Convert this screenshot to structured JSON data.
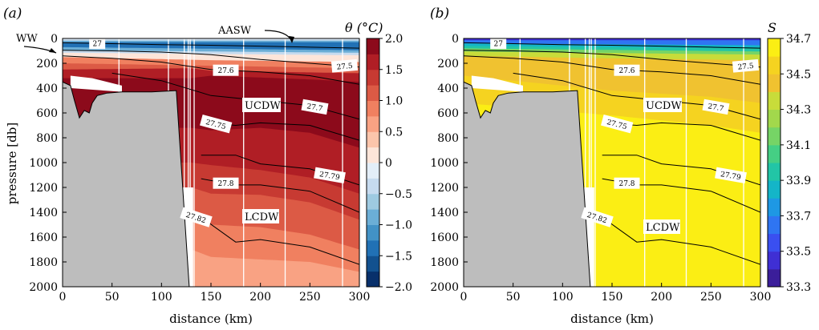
{
  "chart_data": [
    {
      "type": "heatmap",
      "panel_label": "(a)",
      "xlabel": "distance (km)",
      "ylabel": "pressure [db]",
      "xlim": [
        0,
        300
      ],
      "ylim": [
        2000,
        0
      ],
      "xticks": [
        "0",
        "50",
        "100",
        "150",
        "200",
        "250",
        "300"
      ],
      "yticks": [
        "0",
        "200",
        "400",
        "600",
        "800",
        "1000",
        "1200",
        "1400",
        "1600",
        "1800",
        "2000"
      ],
      "colorbar": {
        "title": "θ (°C)",
        "ticks": [
          "2.0",
          "1.5",
          "1.0",
          "0.5",
          "0",
          "−0.5",
          "−1.0",
          "−1.5",
          "−2.0"
        ],
        "range": [
          -2.0,
          2.0
        ],
        "levels": [
          -2.0,
          -1.75,
          -1.5,
          -1.25,
          -1.0,
          -0.75,
          -0.5,
          -0.25,
          0,
          0.25,
          0.5,
          0.75,
          1.0,
          1.25,
          1.5,
          1.75,
          2.0
        ],
        "colors": [
          "#08306b",
          "#12518f",
          "#2171b5",
          "#4292c6",
          "#6baed6",
          "#9ecae1",
          "#c6dbef",
          "#e3eef8",
          "#fde5d9",
          "#fcc5ab",
          "#f9a283",
          "#f08060",
          "#dc5a45",
          "#c73a32",
          "#b01e25",
          "#8c0a1b"
        ]
      },
      "annotations": [
        "WW",
        "AASW",
        "UCDW",
        "LCDW"
      ]
    },
    {
      "type": "heatmap",
      "panel_label": "(b)",
      "xlabel": "distance (km)",
      "ylabel": "",
      "xlim": [
        0,
        300
      ],
      "ylim": [
        2000,
        0
      ],
      "xticks": [
        "0",
        "50",
        "100",
        "150",
        "200",
        "250",
        "300"
      ],
      "yticks": [
        "0",
        "200",
        "400",
        "600",
        "800",
        "1000",
        "1200",
        "1400",
        "1600",
        "1800",
        "2000"
      ],
      "colorbar": {
        "title": "S",
        "ticks": [
          "34.7",
          "34.5",
          "34.3",
          "34.1",
          "33.9",
          "33.7",
          "33.5",
          "33.3"
        ],
        "range": [
          33.3,
          34.7
        ],
        "levels": [
          33.3,
          33.4,
          33.5,
          33.6,
          33.7,
          33.8,
          33.9,
          34.0,
          34.1,
          34.2,
          34.3,
          34.4,
          34.5,
          34.6,
          34.7
        ],
        "colors": [
          "#3b1e9a",
          "#3f2fd4",
          "#3a4ff0",
          "#2f75f2",
          "#1e98e4",
          "#14b5c8",
          "#22c5a6",
          "#45cf84",
          "#76d466",
          "#a2d84c",
          "#c8dc3a",
          "#f0c230",
          "#f5d320",
          "#fbee14"
        ]
      },
      "annotations": [
        "UCDW",
        "LCDW"
      ]
    }
  ],
  "contours": [
    {
      "label": "27",
      "depths": [
        [
          0,
          35
        ],
        [
          50,
          42
        ],
        [
          100,
          50
        ],
        [
          150,
          55
        ],
        [
          200,
          62
        ],
        [
          250,
          70
        ],
        [
          300,
          78
        ]
      ]
    },
    {
      "label": "27.5",
      "depths": [
        [
          0,
          95
        ],
        [
          50,
          100
        ],
        [
          100,
          110
        ],
        [
          150,
          130
        ],
        [
          200,
          170
        ],
        [
          250,
          200
        ],
        [
          300,
          230
        ]
      ]
    },
    {
      "label": "27.6",
      "depths": [
        [
          0,
          140
        ],
        [
          50,
          160
        ],
        [
          100,
          190
        ],
        [
          150,
          250
        ],
        [
          200,
          270
        ],
        [
          250,
          300
        ],
        [
          300,
          370
        ]
      ]
    },
    {
      "label": "27.7",
      "depths": [
        [
          50,
          280
        ],
        [
          100,
          340
        ],
        [
          150,
          460
        ],
        [
          200,
          500
        ],
        [
          250,
          540
        ],
        [
          300,
          650
        ]
      ]
    },
    {
      "label": "27.75",
      "depths": [
        [
          140,
          680
        ],
        [
          175,
          700
        ],
        [
          200,
          680
        ],
        [
          250,
          700
        ],
        [
          300,
          820
        ]
      ]
    },
    {
      "label": "27.79",
      "depths": [
        [
          140,
          940
        ],
        [
          175,
          940
        ],
        [
          200,
          1010
        ],
        [
          250,
          1050
        ],
        [
          300,
          1180
        ]
      ]
    },
    {
      "label": "27.8",
      "depths": [
        [
          140,
          1130
        ],
        [
          175,
          1180
        ],
        [
          200,
          1180
        ],
        [
          250,
          1230
        ],
        [
          300,
          1400
        ]
      ]
    },
    {
      "label": "27.82",
      "depths": [
        [
          140,
          1440
        ],
        [
          175,
          1640
        ],
        [
          200,
          1620
        ],
        [
          250,
          1680
        ],
        [
          300,
          1820
        ]
      ]
    }
  ],
  "topography": [
    [
      0,
      350
    ],
    [
      8,
      380
    ],
    [
      12,
      500
    ],
    [
      17,
      640
    ],
    [
      22,
      580
    ],
    [
      27,
      600
    ],
    [
      30,
      520
    ],
    [
      35,
      460
    ],
    [
      45,
      440
    ],
    [
      60,
      430
    ],
    [
      90,
      430
    ],
    [
      115,
      420
    ],
    [
      128,
      2000
    ]
  ],
  "stations_km": [
    57,
    107,
    123,
    127,
    129,
    133,
    183,
    225,
    283
  ],
  "colors": {
    "land": "#bdbdbd",
    "contour": "#000000",
    "station": "#ffffff"
  }
}
